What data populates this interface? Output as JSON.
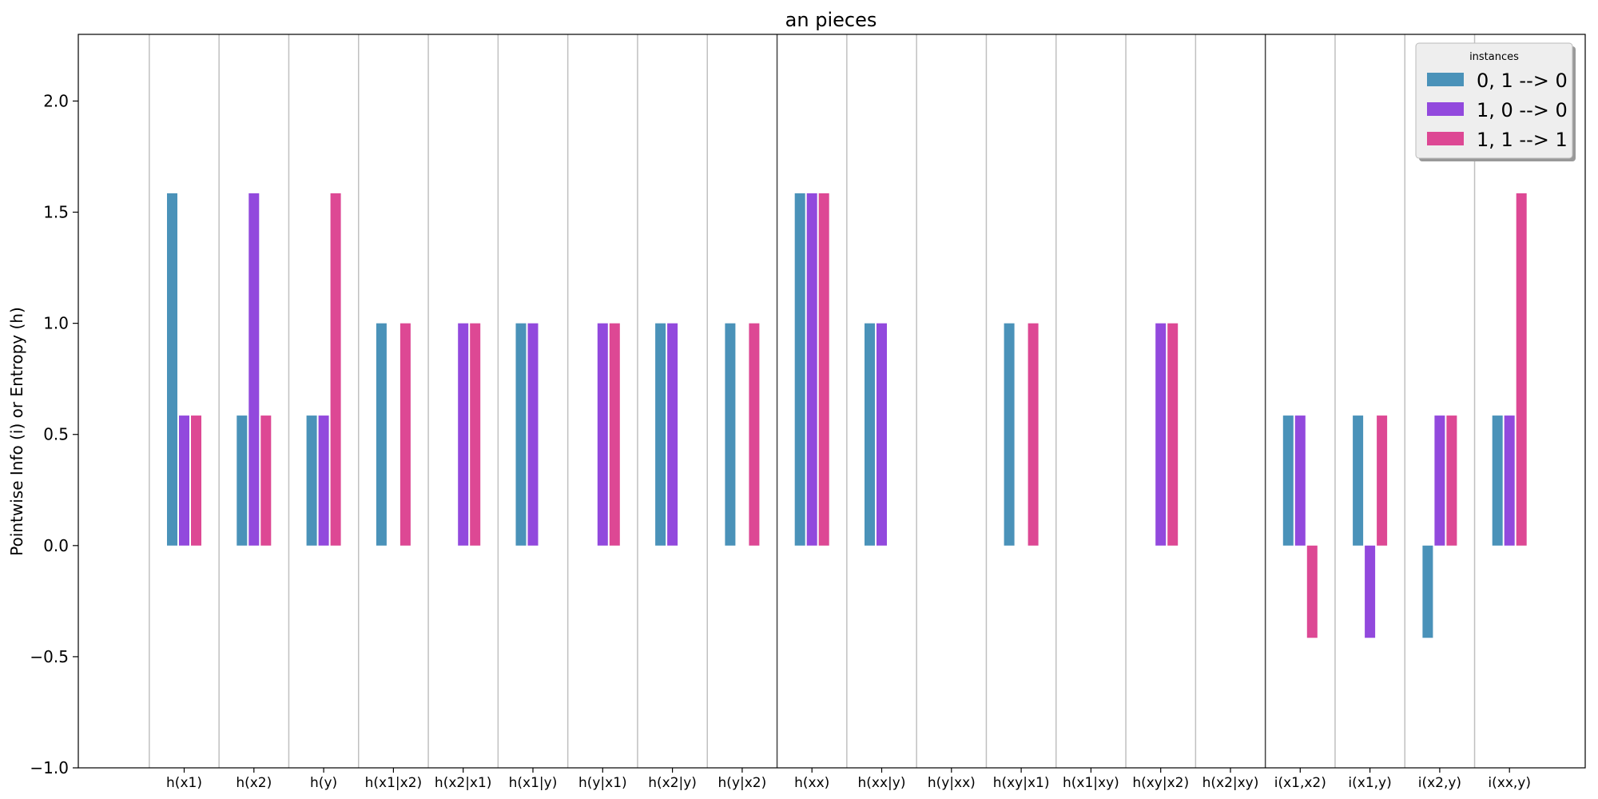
{
  "chart_data": {
    "type": "bar",
    "title": "an pieces",
    "ylabel": "Pointwise Info (i) or Entropy (h)",
    "xlabel": "",
    "ylim": [
      -1.0,
      2.3
    ],
    "yticks": [
      "−1.0",
      "−0.5",
      "0.0",
      "0.5",
      "1.0",
      "1.5",
      "2.0"
    ],
    "ytick_values": [
      -1.0,
      -0.5,
      0.0,
      0.5,
      1.0,
      1.5,
      2.0
    ],
    "categories": [
      "h(x1)",
      "h(x2)",
      "h(y)",
      "h(x1|x2)",
      "h(x2|x1)",
      "h(x1|y)",
      "h(y|x1)",
      "h(x2|y)",
      "h(y|x2)",
      "h(xx)",
      "h(xx|y)",
      "h(y|xx)",
      "h(xy|x1)",
      "h(x1|xy)",
      "h(xy|x2)",
      "h(x2|xy)",
      "i(x1,x2)",
      "i(x1,y)",
      "i(x2,y)",
      "i(xx,y)"
    ],
    "group_separators_after": [
      8,
      15
    ],
    "legend": {
      "title": "instances",
      "position": "top-right"
    },
    "series": [
      {
        "name": "0, 1 --> 0",
        "color": "#4a92b9",
        "values": [
          1.585,
          0.585,
          0.585,
          1.0,
          0.0,
          1.0,
          0.0,
          1.0,
          1.0,
          1.585,
          1.0,
          0.0,
          1.0,
          0.0,
          0.0,
          0.0,
          0.585,
          0.585,
          -0.415,
          0.585
        ]
      },
      {
        "name": "1, 0 --> 0",
        "color": "#9249dd",
        "values": [
          0.585,
          1.585,
          0.585,
          0.0,
          1.0,
          1.0,
          1.0,
          1.0,
          0.0,
          1.585,
          1.0,
          0.0,
          0.0,
          0.0,
          1.0,
          0.0,
          0.585,
          -0.415,
          0.585,
          0.585
        ]
      },
      {
        "name": "1, 1 --> 1",
        "color": "#dd4894",
        "values": [
          0.585,
          0.585,
          1.585,
          1.0,
          1.0,
          0.0,
          1.0,
          0.0,
          1.0,
          1.585,
          0.0,
          0.0,
          1.0,
          0.0,
          1.0,
          0.0,
          -0.415,
          0.585,
          0.585,
          1.585
        ]
      }
    ]
  }
}
